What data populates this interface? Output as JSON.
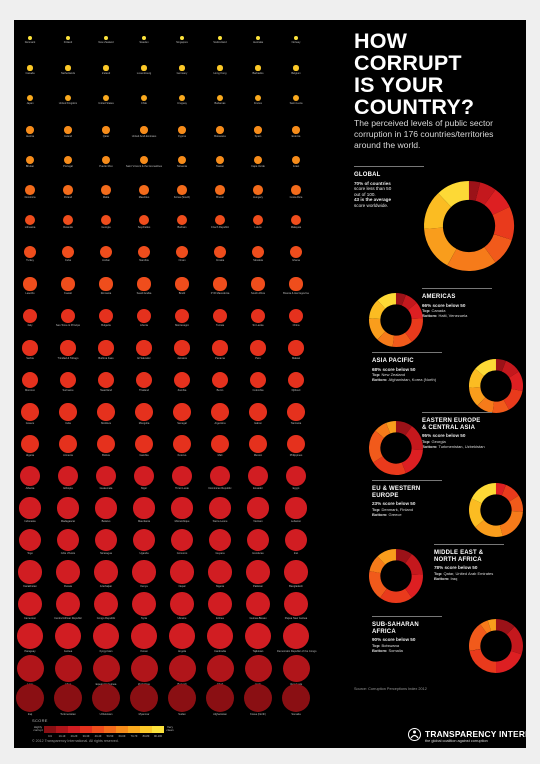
{
  "title_lines": [
    "HOW CORRUPT",
    "IS YOUR",
    "COUNTRY?"
  ],
  "subtitle": "The perceived levels of public sector corruption in 176 countries/territories around the world.",
  "legend": {
    "title": "SCORE",
    "low_label": "Highly corrupt",
    "high_label": "Very clean",
    "ticks": [
      "0-9",
      "10-19",
      "20-29",
      "30-39",
      "40-49",
      "50-59",
      "60-69",
      "70-79",
      "80-89",
      "90-100"
    ],
    "colors": [
      "#8a0f13",
      "#b0151a",
      "#d11d22",
      "#e5311d",
      "#ef4d1c",
      "#f36b1b",
      "#f78c1a",
      "#faaa1e",
      "#fcc928",
      "#fde33c"
    ]
  },
  "copyright": "© 2012 Transparency International. All rights reserved.",
  "source": "Source: Corruption Perceptions Index 2012",
  "logo": {
    "name": "TRANSPARENCY INTERNATIONAL",
    "tagline": "the global coalition against corruption"
  },
  "chart_data": [
    {
      "type": "scatter",
      "description_visible": "Country score dots; larger and redder = lower score",
      "rows": [
        {
          "countries": [
            "Denmark",
            "Finland",
            "New Zealand",
            "Sweden",
            "Singapore",
            "Switzerland",
            "Australia",
            "Norway"
          ],
          "score_band": 9
        },
        {
          "countries": [
            "Canada",
            "Netherlands",
            "Iceland",
            "Luxembourg",
            "Germany",
            "Hong Kong",
            "Barbados",
            "Belgium"
          ],
          "score_band": 8
        },
        {
          "countries": [
            "Japan",
            "United Kingdom",
            "United States",
            "Chile",
            "Uruguay",
            "Bahamas",
            "France",
            "Saint Lucia"
          ],
          "score_band": 7
        },
        {
          "countries": [
            "Austria",
            "Ireland",
            "Qatar",
            "United Arab Emirates",
            "Cyprus",
            "Botswana",
            "Spain",
            "Estonia"
          ],
          "score_band": 6
        },
        {
          "countries": [
            "Bhutan",
            "Portugal",
            "Puerto Rico",
            "Saint Vincent & the Grenadines",
            "Slovenia",
            "Taiwan",
            "Cape Verde",
            "Israel"
          ],
          "score_band": 6
        },
        {
          "countries": [
            "Dominica",
            "Poland",
            "Malta",
            "Mauritius",
            "Korea (South)",
            "Brunei",
            "Hungary",
            "Costa Rica"
          ],
          "score_band": 5
        },
        {
          "countries": [
            "Lithuania",
            "Rwanda",
            "Georgia",
            "Seychelles",
            "Bahrain",
            "Czech Republic",
            "Latvia",
            "Malaysia"
          ],
          "score_band": 4
        },
        {
          "countries": [
            "Turkey",
            "Cuba",
            "Jordan",
            "Namibia",
            "Oman",
            "Croatia",
            "Slovakia",
            "Ghana"
          ],
          "score_band": 4
        },
        {
          "countries": [
            "Lesotho",
            "Kuwait",
            "Romania",
            "Saudi Arabia",
            "Brazil",
            "FYR Macedonia",
            "South Africa",
            "Bosnia & Herzegovina"
          ],
          "score_band": 4
        },
        {
          "countries": [
            "Italy",
            "Sao Tome & Principe",
            "Bulgaria",
            "Liberia",
            "Montenegro",
            "Tunisia",
            "Sri Lanka",
            "China"
          ],
          "score_band": 3
        },
        {
          "countries": [
            "Serbia",
            "Trinidad & Tobago",
            "Burkina Faso",
            "El Salvador",
            "Jamaica",
            "Panama",
            "Peru",
            "Malawi"
          ],
          "score_band": 3
        },
        {
          "countries": [
            "Morocco",
            "Suriname",
            "Swaziland",
            "Thailand",
            "Zambia",
            "Benin",
            "Colombia",
            "Djibouti"
          ],
          "score_band": 3
        },
        {
          "countries": [
            "Greece",
            "India",
            "Moldova",
            "Mongolia",
            "Senegal",
            "Argentina",
            "Gabon",
            "Tanzania"
          ],
          "score_band": 3
        },
        {
          "countries": [
            "Algeria",
            "Armenia",
            "Bolivia",
            "Gambia",
            "Kosovo",
            "Mali",
            "Mexico",
            "Philippines"
          ],
          "score_band": 3
        },
        {
          "countries": [
            "Albania",
            "Ethiopia",
            "Guatemala",
            "Niger",
            "Timor-Leste",
            "Dominican Republic",
            "Ecuador",
            "Egypt"
          ],
          "score_band": 2
        },
        {
          "countries": [
            "Indonesia",
            "Madagascar",
            "Belarus",
            "Mauritania",
            "Mozambique",
            "Sierra Leone",
            "Vietnam",
            "Lebanon"
          ],
          "score_band": 2
        },
        {
          "countries": [
            "Togo",
            "Côte d'Ivoire",
            "Nicaragua",
            "Uganda",
            "Comoros",
            "Guyana",
            "Honduras",
            "Iran"
          ],
          "score_band": 2
        },
        {
          "countries": [
            "Kazakhstan",
            "Russia",
            "Azerbaijan",
            "Kenya",
            "Nepal",
            "Nigeria",
            "Pakistan",
            "Bangladesh"
          ],
          "score_band": 2
        },
        {
          "countries": [
            "Cameroon",
            "Central African Republic",
            "Congo Republic",
            "Syria",
            "Ukraine",
            "Eritrea",
            "Guinea-Bissau",
            "Papua New Guinea"
          ],
          "score_band": 2
        },
        {
          "countries": [
            "Paraguay",
            "Guinea",
            "Kyrgyzstan",
            "Yemen",
            "Angola",
            "Cambodia",
            "Tajikistan",
            "Democratic Republic of the Congo"
          ],
          "score_band": 2
        },
        {
          "countries": [
            "Laos",
            "Libya",
            "Equatorial Guinea",
            "Zimbabwe",
            "Burundi",
            "Chad",
            "Haiti",
            "Venezuela"
          ],
          "score_band": 1
        },
        {
          "countries": [
            "Iraq",
            "Turkmenistan",
            "Uzbekistan",
            "Myanmar",
            "Sudan",
            "Afghanistan",
            "Korea (North)",
            "Somalia"
          ],
          "score_band": 0
        }
      ]
    },
    {
      "type": "pie",
      "regions": [
        {
          "name": "GLOBAL",
          "name_lines": [
            "GLOBAL"
          ],
          "stat_lines": [
            "70% of countries",
            "score less than 50",
            "out of 100.",
            "43 is the average",
            "score worldwide."
          ],
          "top": "",
          "bottom": "",
          "slices": [
            0.04,
            0.06,
            0.08,
            0.12,
            0.1,
            0.18,
            0.16,
            0.14,
            0.12
          ]
        },
        {
          "name": "AMERICAS",
          "name_lines": [
            "AMERICAS"
          ],
          "stat_lines": [
            "66% score below 50"
          ],
          "top": "Canada",
          "bottom": "Haiti, Venezuela",
          "slices": [
            0.06,
            0.08,
            0.1,
            0.16,
            0.12,
            0.1,
            0.14,
            0.12,
            0.12
          ]
        },
        {
          "name": "ASIA PACIFIC",
          "name_lines": [
            "ASIA PACIFIC"
          ],
          "stat_lines": [
            "68% score below 50"
          ],
          "top": "New Zealand",
          "bottom": "Afghanistan, Korea (North)",
          "slices": [
            0.06,
            0.1,
            0.12,
            0.14,
            0.1,
            0.1,
            0.12,
            0.12,
            0.14
          ]
        },
        {
          "name": "EASTERN EUROPE & CENTRAL ASIA",
          "name_lines": [
            "EASTERN EUROPE",
            "& CENTRAL ASIA"
          ],
          "stat_lines": [
            "95% score below 50"
          ],
          "top": "Georgia",
          "bottom": "Turkmenistan, Uzbekistan",
          "slices": [
            0.1,
            0.16,
            0.18,
            0.22,
            0.2,
            0.08,
            0.06,
            0,
            0
          ]
        },
        {
          "name": "EU & WESTERN EUROPE",
          "name_lines": [
            "EU & WESTERN",
            "EUROPE"
          ],
          "stat_lines": [
            "23% score below 50"
          ],
          "top": "Denmark, Finland",
          "bottom": "Greece",
          "slices": [
            0,
            0,
            0.06,
            0.1,
            0.1,
            0.2,
            0.18,
            0.18,
            0.18
          ]
        },
        {
          "name": "MIDDLE EAST & NORTH AFRICA",
          "name_lines": [
            "MIDDLE EAST &",
            "NORTH AFRICA"
          ],
          "stat_lines": [
            "78% score below 50"
          ],
          "top": "Qatar, United Arab Emirates",
          "bottom": "Iraq",
          "slices": [
            0.1,
            0.14,
            0.16,
            0.2,
            0.18,
            0.1,
            0.12,
            0,
            0
          ]
        },
        {
          "name": "SUB-SAHARAN AFRICA",
          "name_lines": [
            "SUB-SAHARAN AFRICA"
          ],
          "stat_lines": [
            "90% score below 50"
          ],
          "top": "Botswana",
          "bottom": "Somalia",
          "slices": [
            0.12,
            0.18,
            0.2,
            0.22,
            0.18,
            0.05,
            0.05,
            0,
            0
          ]
        }
      ],
      "slice_colors": [
        "#9b1218",
        "#c4181d",
        "#dd1f22",
        "#e93a1c",
        "#f15a1b",
        "#f67b1a",
        "#f99d1c",
        "#fbbc22",
        "#fdd936"
      ]
    }
  ]
}
